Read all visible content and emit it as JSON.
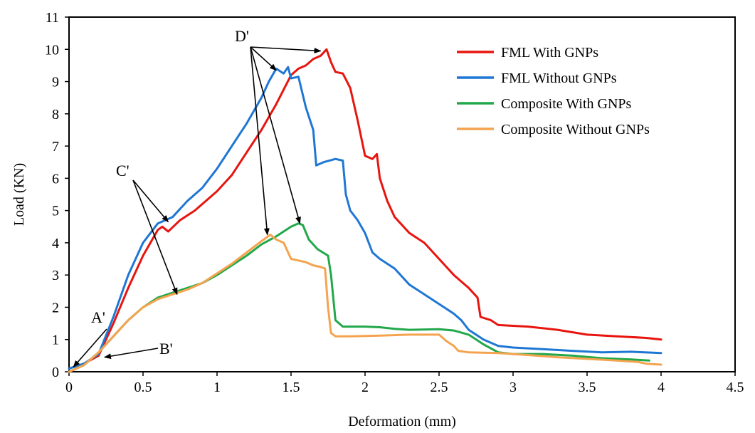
{
  "chart_data": {
    "type": "line",
    "xlabel": "Deformation (mm)",
    "ylabel": "Load (KN)",
    "xlim": [
      0,
      4.5
    ],
    "ylim": [
      0,
      11
    ],
    "xticks": [
      "0",
      "0.5",
      "1",
      "1.5",
      "2",
      "2.5",
      "3",
      "3.5",
      "4",
      "4.5"
    ],
    "yticks": [
      "0",
      "1",
      "2",
      "3",
      "4",
      "5",
      "6",
      "7",
      "8",
      "9",
      "10",
      "11"
    ],
    "grid": false,
    "legend_position": "top-right",
    "series": [
      {
        "name": "FML With GNPs",
        "color": "#e8150f",
        "points": [
          [
            0,
            0.1
          ],
          [
            0.1,
            0.25
          ],
          [
            0.2,
            0.5
          ],
          [
            0.3,
            1.5
          ],
          [
            0.4,
            2.6
          ],
          [
            0.5,
            3.6
          ],
          [
            0.6,
            4.4
          ],
          [
            0.63,
            4.5
          ],
          [
            0.67,
            4.35
          ],
          [
            0.75,
            4.7
          ],
          [
            0.85,
            5.0
          ],
          [
            1.0,
            5.6
          ],
          [
            1.1,
            6.1
          ],
          [
            1.2,
            6.8
          ],
          [
            1.3,
            7.5
          ],
          [
            1.4,
            8.3
          ],
          [
            1.5,
            9.2
          ],
          [
            1.55,
            9.4
          ],
          [
            1.6,
            9.5
          ],
          [
            1.65,
            9.7
          ],
          [
            1.7,
            9.8
          ],
          [
            1.74,
            10.0
          ],
          [
            1.77,
            9.6
          ],
          [
            1.8,
            9.3
          ],
          [
            1.85,
            9.25
          ],
          [
            1.9,
            8.8
          ],
          [
            1.95,
            7.8
          ],
          [
            2.0,
            6.7
          ],
          [
            2.05,
            6.6
          ],
          [
            2.08,
            6.75
          ],
          [
            2.1,
            6.0
          ],
          [
            2.15,
            5.3
          ],
          [
            2.2,
            4.8
          ],
          [
            2.3,
            4.3
          ],
          [
            2.4,
            4.0
          ],
          [
            2.5,
            3.5
          ],
          [
            2.6,
            3.0
          ],
          [
            2.7,
            2.6
          ],
          [
            2.76,
            2.3
          ],
          [
            2.78,
            1.7
          ],
          [
            2.85,
            1.6
          ],
          [
            2.9,
            1.45
          ],
          [
            3.1,
            1.4
          ],
          [
            3.3,
            1.3
          ],
          [
            3.5,
            1.15
          ],
          [
            3.7,
            1.1
          ],
          [
            3.9,
            1.05
          ],
          [
            4.0,
            1.0
          ]
        ]
      },
      {
        "name": "FML Without GNPs",
        "color": "#1f77d4",
        "points": [
          [
            0,
            0.1
          ],
          [
            0.1,
            0.25
          ],
          [
            0.2,
            0.55
          ],
          [
            0.3,
            1.7
          ],
          [
            0.4,
            3.0
          ],
          [
            0.5,
            4.0
          ],
          [
            0.6,
            4.6
          ],
          [
            0.7,
            4.8
          ],
          [
            0.8,
            5.3
          ],
          [
            0.9,
            5.7
          ],
          [
            1.0,
            6.3
          ],
          [
            1.1,
            7.0
          ],
          [
            1.2,
            7.7
          ],
          [
            1.3,
            8.5
          ],
          [
            1.35,
            9.0
          ],
          [
            1.4,
            9.4
          ],
          [
            1.45,
            9.25
          ],
          [
            1.48,
            9.45
          ],
          [
            1.5,
            9.1
          ],
          [
            1.55,
            9.15
          ],
          [
            1.6,
            8.2
          ],
          [
            1.65,
            7.5
          ],
          [
            1.67,
            6.4
          ],
          [
            1.72,
            6.5
          ],
          [
            1.8,
            6.6
          ],
          [
            1.85,
            6.55
          ],
          [
            1.87,
            5.5
          ],
          [
            1.9,
            5.0
          ],
          [
            1.95,
            4.7
          ],
          [
            2.0,
            4.3
          ],
          [
            2.05,
            3.7
          ],
          [
            2.1,
            3.5
          ],
          [
            2.2,
            3.2
          ],
          [
            2.3,
            2.7
          ],
          [
            2.4,
            2.4
          ],
          [
            2.5,
            2.1
          ],
          [
            2.6,
            1.8
          ],
          [
            2.65,
            1.6
          ],
          [
            2.7,
            1.3
          ],
          [
            2.75,
            1.15
          ],
          [
            2.8,
            1.0
          ],
          [
            2.9,
            0.8
          ],
          [
            3.0,
            0.75
          ],
          [
            3.2,
            0.7
          ],
          [
            3.4,
            0.65
          ],
          [
            3.6,
            0.6
          ],
          [
            3.8,
            0.62
          ],
          [
            4.0,
            0.58
          ]
        ]
      },
      {
        "name": "Composite With GNPs",
        "color": "#22a84a",
        "points": [
          [
            0,
            0.0
          ],
          [
            0.1,
            0.2
          ],
          [
            0.2,
            0.6
          ],
          [
            0.3,
            1.1
          ],
          [
            0.4,
            1.6
          ],
          [
            0.5,
            2.0
          ],
          [
            0.6,
            2.3
          ],
          [
            0.7,
            2.45
          ],
          [
            0.8,
            2.6
          ],
          [
            0.9,
            2.75
          ],
          [
            1.0,
            3.0
          ],
          [
            1.1,
            3.3
          ],
          [
            1.2,
            3.6
          ],
          [
            1.3,
            3.95
          ],
          [
            1.4,
            4.2
          ],
          [
            1.5,
            4.5
          ],
          [
            1.55,
            4.6
          ],
          [
            1.58,
            4.55
          ],
          [
            1.62,
            4.1
          ],
          [
            1.68,
            3.8
          ],
          [
            1.75,
            3.6
          ],
          [
            1.77,
            3.0
          ],
          [
            1.8,
            1.6
          ],
          [
            1.85,
            1.4
          ],
          [
            2.0,
            1.4
          ],
          [
            2.1,
            1.38
          ],
          [
            2.2,
            1.33
          ],
          [
            2.3,
            1.3
          ],
          [
            2.5,
            1.32
          ],
          [
            2.6,
            1.28
          ],
          [
            2.7,
            1.15
          ],
          [
            2.8,
            0.85
          ],
          [
            2.9,
            0.6
          ],
          [
            3.0,
            0.55
          ],
          [
            3.2,
            0.55
          ],
          [
            3.4,
            0.5
          ],
          [
            3.6,
            0.42
          ],
          [
            3.8,
            0.38
          ],
          [
            3.92,
            0.35
          ]
        ]
      },
      {
        "name": "Composite Without GNPs",
        "color": "#f4a450",
        "points": [
          [
            0,
            0.0
          ],
          [
            0.1,
            0.2
          ],
          [
            0.2,
            0.6
          ],
          [
            0.3,
            1.1
          ],
          [
            0.4,
            1.6
          ],
          [
            0.5,
            2.0
          ],
          [
            0.6,
            2.25
          ],
          [
            0.7,
            2.4
          ],
          [
            0.8,
            2.55
          ],
          [
            0.9,
            2.75
          ],
          [
            1.0,
            3.05
          ],
          [
            1.1,
            3.35
          ],
          [
            1.2,
            3.7
          ],
          [
            1.3,
            4.05
          ],
          [
            1.36,
            4.25
          ],
          [
            1.4,
            4.1
          ],
          [
            1.45,
            4.0
          ],
          [
            1.5,
            3.5
          ],
          [
            1.55,
            3.45
          ],
          [
            1.6,
            3.4
          ],
          [
            1.65,
            3.3
          ],
          [
            1.7,
            3.25
          ],
          [
            1.73,
            3.2
          ],
          [
            1.75,
            2.0
          ],
          [
            1.77,
            1.2
          ],
          [
            1.8,
            1.1
          ],
          [
            1.9,
            1.1
          ],
          [
            2.1,
            1.12
          ],
          [
            2.3,
            1.15
          ],
          [
            2.5,
            1.15
          ],
          [
            2.55,
            0.95
          ],
          [
            2.6,
            0.8
          ],
          [
            2.63,
            0.65
          ],
          [
            2.7,
            0.6
          ],
          [
            2.9,
            0.58
          ],
          [
            3.1,
            0.52
          ],
          [
            3.3,
            0.45
          ],
          [
            3.5,
            0.4
          ],
          [
            3.7,
            0.35
          ],
          [
            3.85,
            0.3
          ],
          [
            3.9,
            0.25
          ],
          [
            4.0,
            0.22
          ]
        ]
      }
    ],
    "annotations": [
      {
        "label": "A'",
        "arrows_to": [
          [
            0.03,
            0.15
          ]
        ]
      },
      {
        "label": "B'",
        "arrows_to": [
          [
            0.24,
            0.45
          ]
        ]
      },
      {
        "label": "C'",
        "arrows_to": [
          [
            0.67,
            4.65
          ],
          [
            0.73,
            2.4
          ]
        ]
      },
      {
        "label": "D'",
        "arrows_to": [
          [
            1.4,
            9.35
          ],
          [
            1.7,
            9.95
          ],
          [
            1.34,
            4.25
          ],
          [
            1.56,
            4.6
          ]
        ]
      }
    ]
  }
}
